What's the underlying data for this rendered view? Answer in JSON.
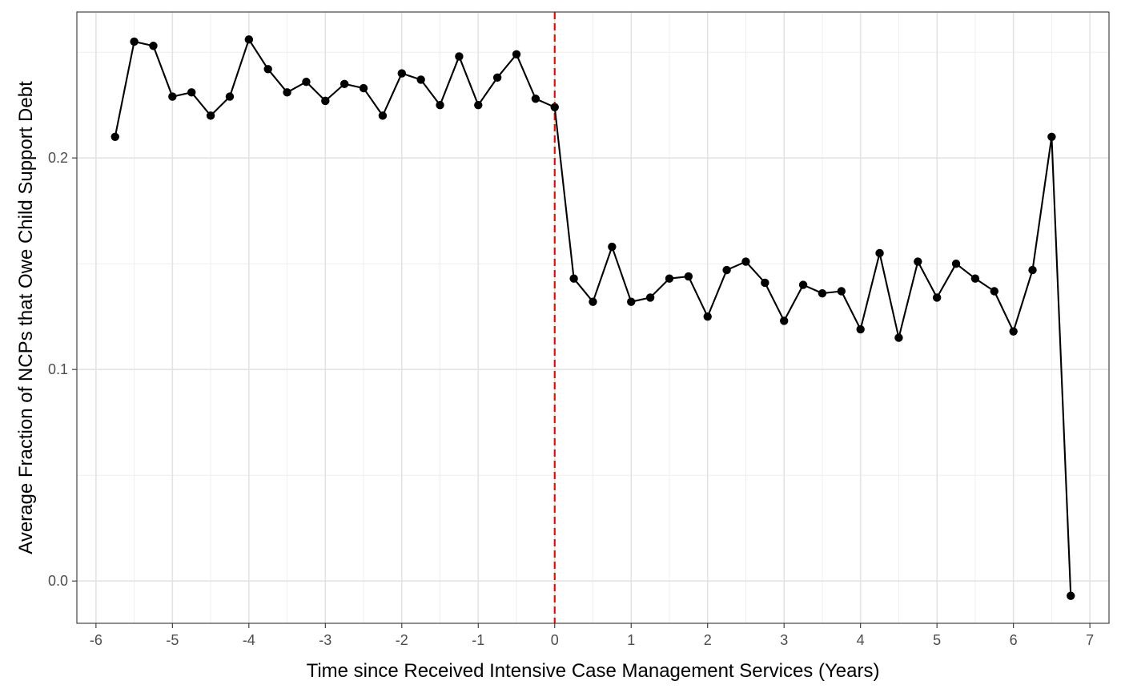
{
  "chart_data": {
    "type": "line",
    "xlabel": "Time since Received Intensive Case Management Services (Years)",
    "ylabel": "Average Fraction of NCPs that Owe Child Support Debt",
    "xlim": [
      -6.25,
      7.25
    ],
    "ylim": [
      -0.02,
      0.269
    ],
    "x_ticks": [
      -6,
      -5,
      -4,
      -3,
      -2,
      -1,
      0,
      1,
      2,
      3,
      4,
      5,
      6,
      7
    ],
    "x_tick_labels": [
      "-6",
      "-5",
      "-4",
      "-3",
      "-2",
      "-1",
      "0",
      "1",
      "2",
      "3",
      "4",
      "5",
      "6",
      "7"
    ],
    "y_ticks": [
      0.0,
      0.1,
      0.2
    ],
    "y_tick_labels": [
      "0.0",
      "0.1",
      "0.2"
    ],
    "grid": true,
    "reference_line": {
      "x": 0,
      "style": "dashed",
      "color": "#ff0000"
    },
    "series": [
      {
        "color": "#000000",
        "x": [
          -5.75,
          -5.5,
          -5.25,
          -5.0,
          -4.75,
          -4.5,
          -4.25,
          -4.0,
          -3.75,
          -3.5,
          -3.25,
          -3.0,
          -2.75,
          -2.5,
          -2.25,
          -2.0,
          -1.75,
          -1.5,
          -1.25,
          -1.0,
          -0.75,
          -0.5,
          -0.25,
          0.0,
          0.25,
          0.5,
          0.75,
          1.0,
          1.25,
          1.5,
          1.75,
          2.0,
          2.25,
          2.5,
          2.75,
          3.0,
          3.25,
          3.5,
          3.75,
          4.0,
          4.25,
          4.5,
          4.75,
          5.0,
          5.25,
          5.5,
          5.75,
          6.0,
          6.25,
          6.5,
          6.75
        ],
        "y": [
          0.21,
          0.255,
          0.253,
          0.229,
          0.231,
          0.22,
          0.229,
          0.256,
          0.242,
          0.231,
          0.236,
          0.227,
          0.235,
          0.233,
          0.22,
          0.24,
          0.237,
          0.225,
          0.248,
          0.225,
          0.238,
          0.249,
          0.228,
          0.224,
          0.143,
          0.132,
          0.158,
          0.132,
          0.134,
          0.143,
          0.144,
          0.125,
          0.147,
          0.151,
          0.141,
          0.123,
          0.14,
          0.136,
          0.137,
          0.119,
          0.155,
          0.115,
          0.151,
          0.134,
          0.15,
          0.143,
          0.137,
          0.118,
          0.147,
          0.21,
          -0.007
        ]
      }
    ]
  }
}
